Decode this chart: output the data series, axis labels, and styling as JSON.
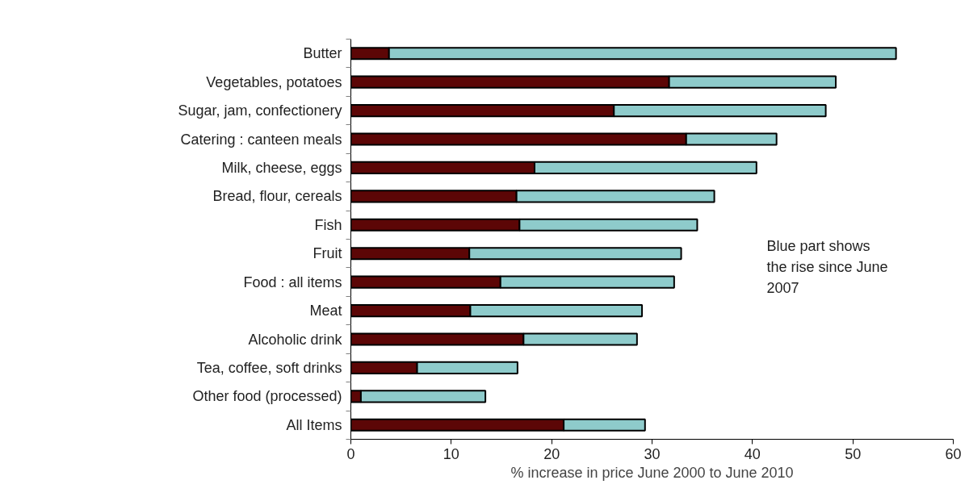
{
  "chart_data": {
    "type": "bar",
    "orientation": "horizontal",
    "stacked": true,
    "categories": [
      "Butter",
      "Vegetables, potatoes",
      "Sugar, jam, confectionery",
      "Catering : canteen meals",
      "Milk, cheese, eggs",
      "Bread, flour, cereals",
      "Fish",
      "Fruit",
      "Food : all items",
      "Meat",
      "Alcoholic drink",
      "Tea, coffee, soft drinks",
      "Other food (processed)",
      "All Items"
    ],
    "series": [
      {
        "color": "#5c0606",
        "values": [
          3.8,
          31.7,
          26.2,
          33.4,
          18.3,
          16.5,
          16.8,
          11.8,
          14.9,
          11.9,
          17.2,
          6.6,
          1.0,
          21.2
        ]
      },
      {
        "color": "#8ecbcb",
        "values": [
          50.5,
          16.6,
          21.1,
          9.0,
          22.1,
          19.7,
          17.7,
          21.1,
          17.3,
          17.1,
          11.3,
          10.0,
          12.4,
          8.1
        ]
      }
    ],
    "xlabel": "% increase in price June 2000 to June 2010",
    "xlim": [
      0,
      60
    ],
    "xticks": [
      0,
      10,
      20,
      30,
      40,
      50,
      60
    ],
    "annotations": [
      "Blue part shows\nthe rise since June\n2007"
    ],
    "grid": false
  }
}
